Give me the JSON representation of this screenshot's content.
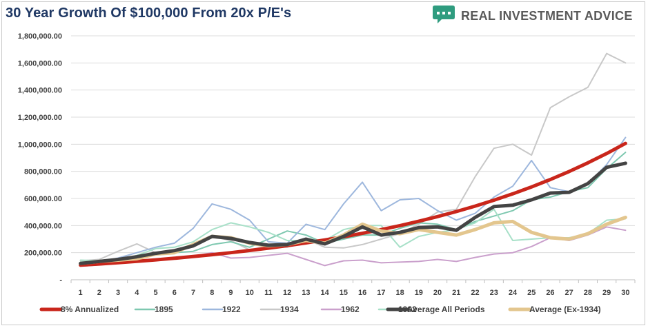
{
  "header": {
    "title": "30 Year Growth Of $100,000 From 20x P/E's",
    "brand": "REAL INVESTMENT ADVICE",
    "logo_icon": "speech-bubble-icon"
  },
  "chart_data": {
    "type": "line",
    "title": "30 Year Growth Of $100,000 From 20x P/E's",
    "xlabel": "",
    "ylabel": "",
    "ylim": [
      0,
      1800000
    ],
    "y_ticks": [
      "-",
      "200,000.00",
      "400,000.00",
      "600,000.00",
      "800,000.00",
      "1,000,000.00",
      "1,200,000.00",
      "1,400,000.00",
      "1,600,000.00",
      "1,800,000.00"
    ],
    "y_tick_values": [
      0,
      200000,
      400000,
      600000,
      800000,
      1000000,
      1200000,
      1400000,
      1600000,
      1800000
    ],
    "categories": [
      "1",
      "2",
      "3",
      "4",
      "5",
      "6",
      "7",
      "8",
      "9",
      "10",
      "11",
      "12",
      "13",
      "14",
      "15",
      "16",
      "17",
      "18",
      "19",
      "20",
      "21",
      "22",
      "23",
      "24",
      "25",
      "26",
      "27",
      "28",
      "29",
      "30"
    ],
    "grid": "horizontal",
    "legend_position": "bottom",
    "series": [
      {
        "name": "1934",
        "color": "#c8c8c8",
        "width": 2,
        "values": [
          140000,
          150000,
          210000,
          265000,
          200000,
          210000,
          250000,
          320000,
          290000,
          220000,
          250000,
          240000,
          300000,
          240000,
          235000,
          260000,
          300000,
          340000,
          410000,
          500000,
          520000,
          760000,
          970000,
          1000000,
          920000,
          1270000,
          1350000,
          1420000,
          1670000,
          1600000
        ]
      },
      {
        "name": "1895",
        "color": "#7ec8b0",
        "width": 2,
        "values": [
          130000,
          140000,
          150000,
          170000,
          190000,
          200000,
          210000,
          260000,
          280000,
          240000,
          300000,
          360000,
          330000,
          270000,
          300000,
          330000,
          330000,
          380000,
          420000,
          410000,
          370000,
          430000,
          470000,
          510000,
          590000,
          610000,
          650000,
          680000,
          820000,
          940000
        ]
      },
      {
        "name": "1922",
        "color": "#9db7dd",
        "width": 2,
        "values": [
          110000,
          130000,
          160000,
          200000,
          240000,
          270000,
          380000,
          560000,
          520000,
          440000,
          280000,
          270000,
          410000,
          370000,
          560000,
          720000,
          510000,
          590000,
          600000,
          510000,
          440000,
          490000,
          610000,
          690000,
          880000,
          680000,
          650000,
          710000,
          850000,
          1050000
        ]
      },
      {
        "name": "1962",
        "color": "#caa0cc",
        "width": 2,
        "values": [
          100000,
          110000,
          120000,
          130000,
          145000,
          160000,
          175000,
          200000,
          160000,
          165000,
          180000,
          195000,
          150000,
          105000,
          140000,
          145000,
          125000,
          130000,
          135000,
          150000,
          135000,
          165000,
          190000,
          200000,
          245000,
          310000,
          290000,
          330000,
          390000,
          365000
        ]
      },
      {
        "name": "1992",
        "color": "#a7e0c8",
        "width": 2,
        "values": [
          145000,
          140000,
          140000,
          180000,
          230000,
          240000,
          280000,
          370000,
          420000,
          390000,
          350000,
          290000,
          290000,
          290000,
          370000,
          400000,
          400000,
          240000,
          320000,
          350000,
          370000,
          420000,
          520000,
          290000,
          300000,
          310000,
          310000,
          340000,
          440000,
          450000
        ]
      },
      {
        "name": "8% Annualized",
        "color": "#c9261b",
        "width": 5,
        "values": [
          108000,
          116640,
          125971,
          136049,
          146933,
          158687,
          171382,
          185093,
          199900,
          215892,
          233164,
          251817,
          271962,
          293719,
          317217,
          342594,
          370002,
          399602,
          431570,
          466096,
          503383,
          543654,
          587146,
          634118,
          684848,
          739635,
          798806,
          862710,
          931727,
          1006266
        ]
      },
      {
        "name": "Average (Ex-1934)",
        "color": "#e3c68e",
        "width": 5,
        "values": [
          120000,
          135000,
          145000,
          155000,
          190000,
          200000,
          260000,
          320000,
          310000,
          270000,
          250000,
          260000,
          290000,
          270000,
          330000,
          410000,
          360000,
          340000,
          370000,
          350000,
          330000,
          370000,
          420000,
          430000,
          350000,
          310000,
          300000,
          340000,
          410000,
          460000
        ]
      },
      {
        "name": "Average All Periods",
        "color": "#444444",
        "width": 5,
        "values": [
          120000,
          135000,
          150000,
          170000,
          195000,
          215000,
          250000,
          320000,
          305000,
          275000,
          255000,
          260000,
          300000,
          265000,
          320000,
          390000,
          330000,
          350000,
          385000,
          390000,
          365000,
          460000,
          540000,
          550000,
          590000,
          640000,
          645000,
          710000,
          830000,
          860000
        ]
      }
    ],
    "legend_order": [
      "8% Annualized",
      "1895",
      "1922",
      "1934",
      "1962",
      "1992",
      "Average All Periods",
      "Average (Ex-1934)"
    ]
  }
}
